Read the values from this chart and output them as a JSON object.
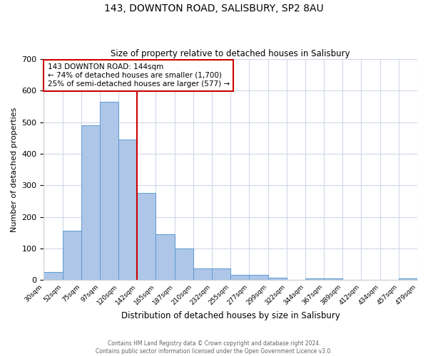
{
  "title": "143, DOWNTON ROAD, SALISBURY, SP2 8AU",
  "subtitle": "Size of property relative to detached houses in Salisbury",
  "xlabel": "Distribution of detached houses by size in Salisbury",
  "ylabel": "Number of detached properties",
  "bin_labels": [
    "30sqm",
    "52sqm",
    "75sqm",
    "97sqm",
    "120sqm",
    "142sqm",
    "165sqm",
    "187sqm",
    "210sqm",
    "232sqm",
    "255sqm",
    "277sqm",
    "299sqm",
    "322sqm",
    "344sqm",
    "367sqm",
    "389sqm",
    "412sqm",
    "434sqm",
    "457sqm",
    "479sqm"
  ],
  "bin_values": [
    25,
    155,
    490,
    565,
    445,
    275,
    145,
    100,
    37,
    37,
    15,
    15,
    8,
    0,
    5,
    5,
    0,
    0,
    0,
    5
  ],
  "bar_color": "#aec6e8",
  "bar_edge_color": "#5b9bd5",
  "vline_x_index": 5,
  "vline_color": "#cc0000",
  "annotation_line1": "143 DOWNTON ROAD: 144sqm",
  "annotation_line2": "← 74% of detached houses are smaller (1,700)",
  "annotation_line3": "25% of semi-detached houses are larger (577) →",
  "annotation_box_color": "#ffffff",
  "annotation_border_color": "#cc0000",
  "ylim": [
    0,
    700
  ],
  "yticks": [
    0,
    100,
    200,
    300,
    400,
    500,
    600,
    700
  ],
  "footer_line1": "Contains HM Land Registry data © Crown copyright and database right 2024.",
  "footer_line2": "Contains public sector information licensed under the Open Government Licence v3.0.",
  "background_color": "#ffffff",
  "grid_color": "#d0d8e8"
}
